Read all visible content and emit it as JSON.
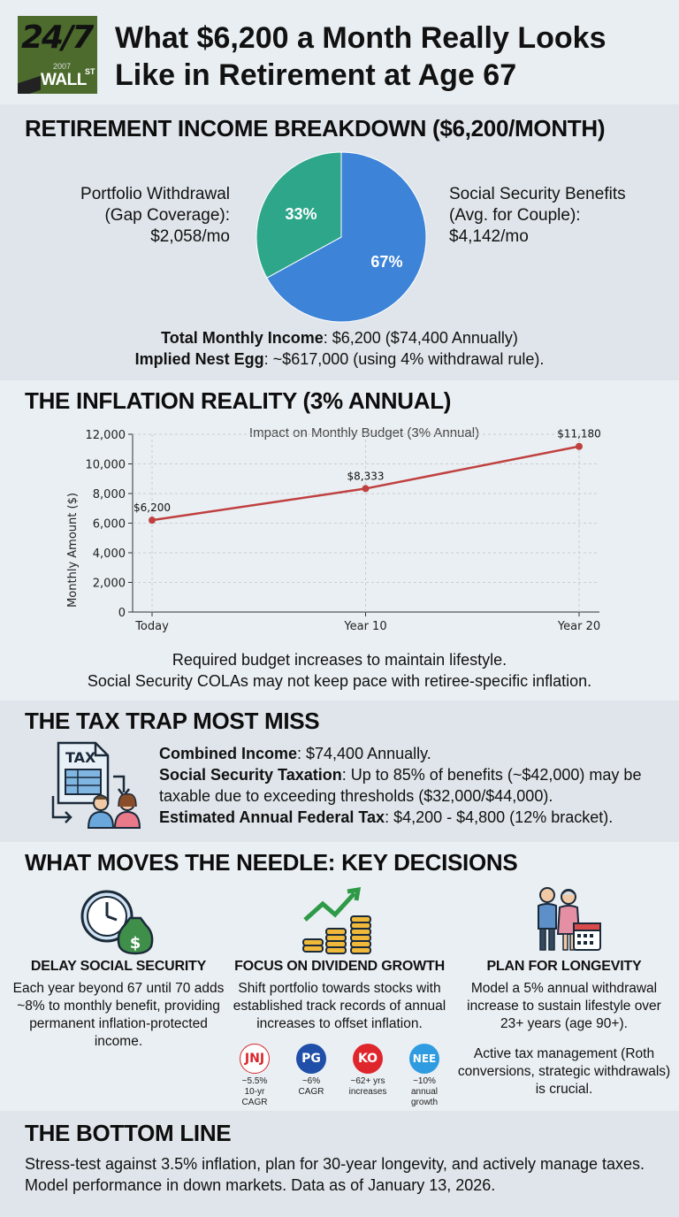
{
  "header": {
    "logo": {
      "big": "24/7",
      "small": "2007",
      "wall": "WALL",
      "st": "ST"
    },
    "title": "What $6,200 a Month Really Looks Like in Retirement at Age 67"
  },
  "breakdown": {
    "title": "RETIREMENT INCOME BREAKDOWN ($6,200/MONTH)",
    "left_label": [
      "Portfolio Withdrawal",
      "(Gap Coverage):",
      "$2,058/mo"
    ],
    "right_label": [
      "Social Security Benefits",
      "(Avg. for Couple):",
      "$4,142/mo"
    ],
    "total_label": "Total Monthly Income",
    "total_value": ": $6,200 ($74,400 Annually)",
    "nest_label": "Implied Nest Egg",
    "nest_value": ": ~$617,000 (using 4% withdrawal rule).",
    "colors": {
      "social": "#3d83d8",
      "portfolio": "#2ea68a"
    }
  },
  "pie_data": {
    "type": "pie",
    "slices": [
      {
        "label": "Social Security Benefits",
        "value": 67,
        "text": "67%",
        "color": "#3d83d8"
      },
      {
        "label": "Portfolio Withdrawal",
        "value": 33,
        "text": "33%",
        "color": "#2ea68a"
      }
    ]
  },
  "inflation": {
    "title": "THE INFLATION REALITY (3% ANNUAL)",
    "notes": [
      "Required budget increases to maintain lifestyle.",
      "Social Security COLAs may not keep pace with retiree-specific inflation."
    ]
  },
  "chart_data": {
    "type": "line",
    "title": "Impact on Monthly Budget (3% Annual)",
    "xlabel": "",
    "ylabel": "Monthly Amount ($)",
    "categories": [
      "Today",
      "Year 10",
      "Year 20"
    ],
    "x": [
      0,
      10,
      20
    ],
    "values": [
      6200,
      8333,
      11180
    ],
    "data_labels": [
      "$6,200",
      "$8,333",
      "$11,180"
    ],
    "ylim": [
      0,
      12000
    ],
    "yticks": [
      0,
      2000,
      4000,
      6000,
      8000,
      10000,
      12000
    ],
    "ytick_labels": [
      "0",
      "2,000",
      "4,000",
      "6,000",
      "8,000",
      "10,000",
      "12,000"
    ],
    "grid": true,
    "line_color": "#c0403f"
  },
  "tax": {
    "title": "THE TAX TRAP MOST MISS",
    "icon_text": "TAX",
    "items": [
      {
        "label": "Combined Income",
        "text": ": $74,400 Annually."
      },
      {
        "label": "Social Security Taxation",
        "text": ": Up to 85% of benefits (~$42,000) may be taxable due to exceeding thresholds ($32,000/$44,000)."
      },
      {
        "label": "Estimated Annual Federal Tax",
        "text": ": $4,200 - $4,800 (12% bracket)."
      }
    ]
  },
  "decisions": {
    "title": "WHAT MOVES THE NEEDLE: KEY DECISIONS",
    "cols": [
      {
        "title": "DELAY SOCIAL SECURITY",
        "text": "Each year beyond 67 until 70 adds ~8% to monthly benefit, providing permanent inflation-protected income."
      },
      {
        "title": "FOCUS ON DIVIDEND GROWTH",
        "text": "Shift portfolio towards stocks with established track records of annual increases to offset inflation."
      },
      {
        "title": "PLAN FOR LONGEVITY",
        "text": "Model a 5% annual withdrawal increase to sustain lifestyle over 23+ years (age 90+).",
        "text2": "Active tax management (Roth conversions, strategic withdrawals) is crucial."
      }
    ],
    "tickers": [
      {
        "logo": "JNJ",
        "line1": "~5.5%",
        "line2": "10-yr CAGR",
        "color": "#d7262b"
      },
      {
        "logo": "PG",
        "line1": "~6%",
        "line2": "CAGR",
        "color": "#1f4fa8"
      },
      {
        "logo": "KO",
        "line1": "~62+ yrs",
        "line2": "increases",
        "color": "#e0262d"
      },
      {
        "logo": "NEE",
        "line1": "~10%",
        "line2": "annual growth",
        "color": "#2f9be0"
      }
    ]
  },
  "bottom": {
    "title": "THE BOTTOM LINE",
    "text": "Stress-test against 3.5% inflation, plan for 30-year longevity, and actively manage taxes. Model performance in down markets. Data as of January 13, 2026."
  }
}
